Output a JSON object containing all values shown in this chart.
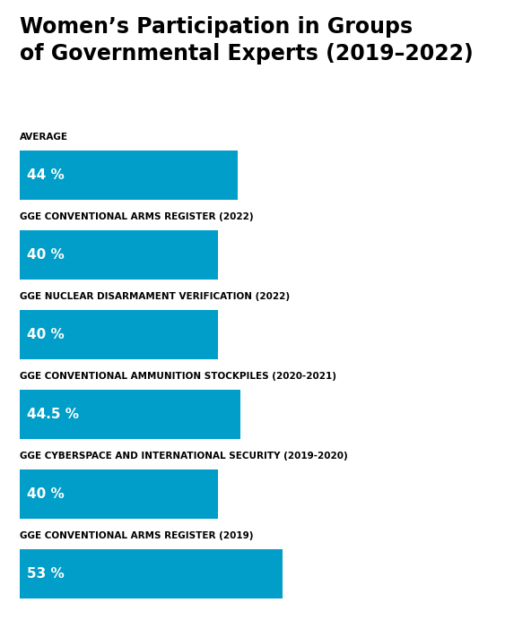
{
  "title_line1": "Women’s Participation in Groups",
  "title_line2": "of Governmental Experts (2019–2022)",
  "title_fontsize": 17,
  "title_fontweight": "bold",
  "background_color": "#ffffff",
  "bar_bg_color": "#dce8ee",
  "bar_fg_color": "#009ec8",
  "label_color": "#ffffff",
  "label_fontsize": 11,
  "category_label_color": "#000000",
  "category_label_fontsize": 7.5,
  "category_label_fontweight": "bold",
  "categories": [
    "AVERAGE",
    "GGE CONVENTIONAL ARMS REGISTER (2022)",
    "GGE NUCLEAR DISARMAMENT VERIFICATION (2022)",
    "GGE CONVENTIONAL AMMUNITION STOCKPILES (2020-2021)",
    "GGE CYBERSPACE AND INTERNATIONAL SECURITY (2019-2020)",
    "GGE CONVENTIONAL ARMS REGISTER (2019)"
  ],
  "values": [
    44,
    40,
    40,
    44.5,
    40,
    53
  ],
  "labels": [
    "44 %",
    "40 %",
    "40 %",
    "44.5 %",
    "40 %",
    "53 %"
  ],
  "max_value": 100,
  "fig_width": 5.92,
  "fig_height": 6.92,
  "dpi": 100
}
